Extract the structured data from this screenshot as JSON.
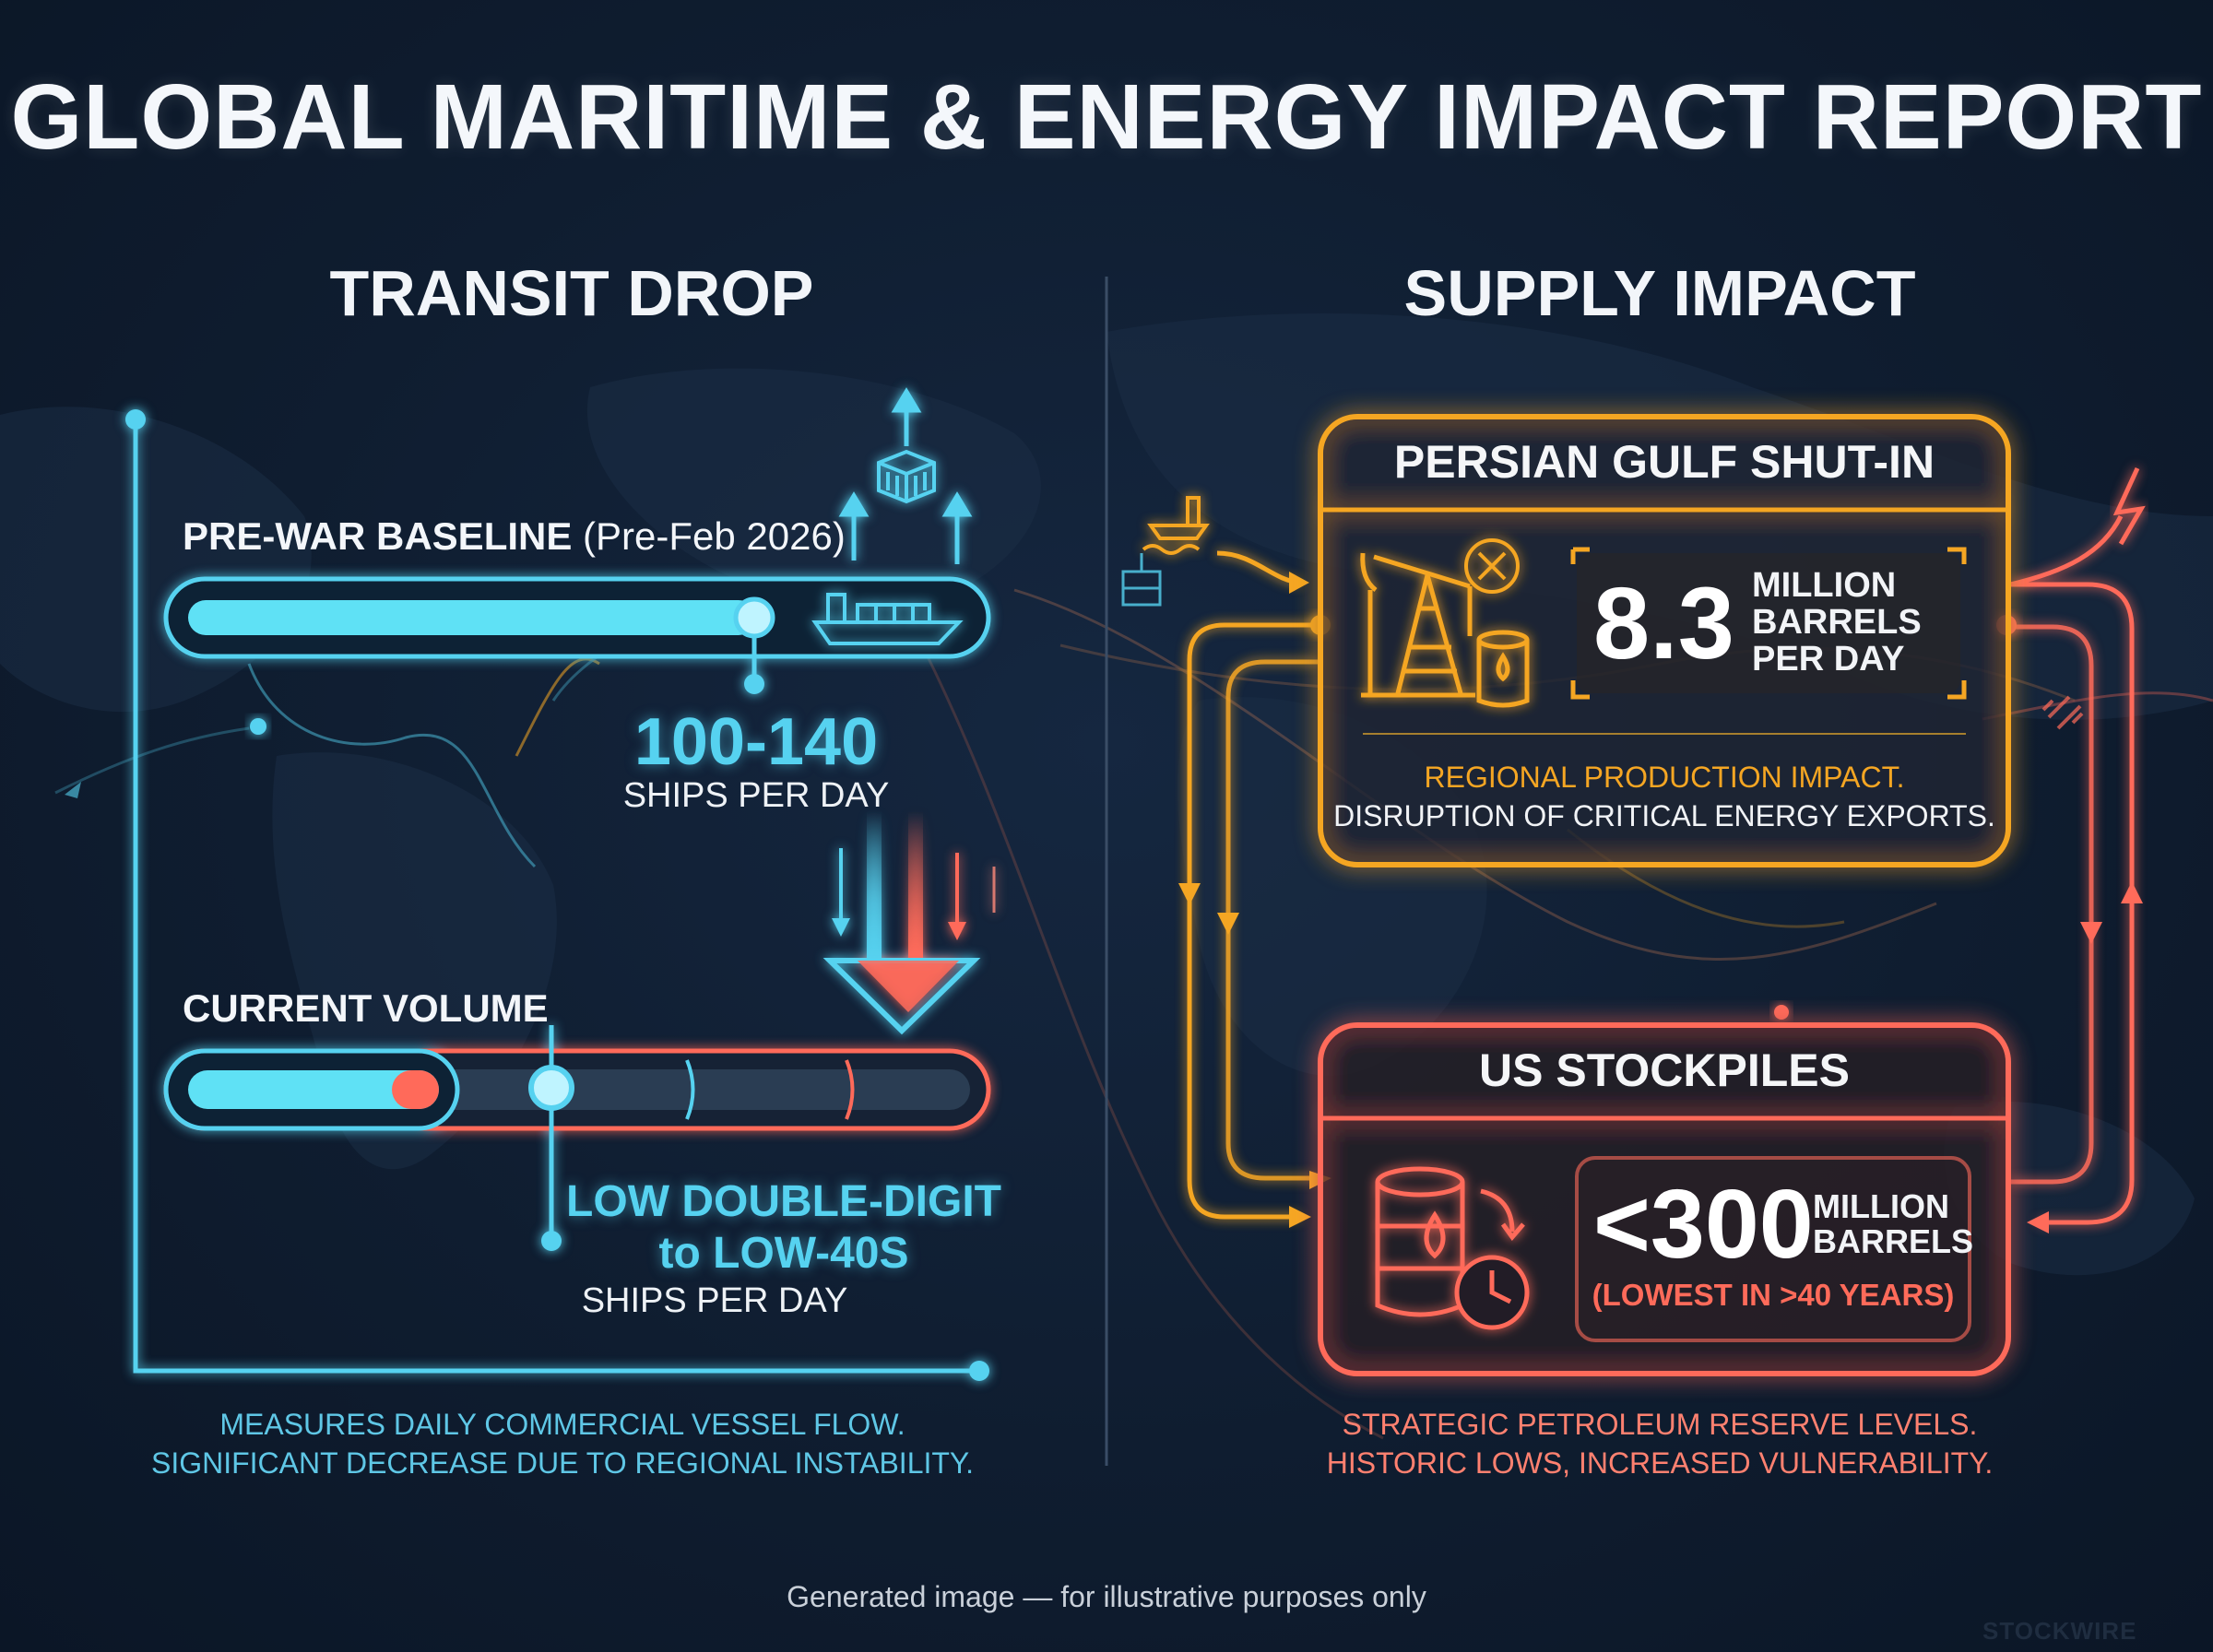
{
  "title": "GLOBAL MARITIME & ENERGY IMPACT REPORT",
  "transit": {
    "heading": "TRANSIT DROP",
    "baseline_label": "PRE-WAR BASELINE",
    "baseline_period": "(Pre-Feb 2026)",
    "baseline_value": "100-140",
    "baseline_unit": "SHIPS PER DAY",
    "current_label": "CURRENT VOLUME",
    "current_value_line1": "LOW DOUBLE-DIGIT",
    "current_value_line2": "to LOW-40S",
    "current_unit": "SHIPS PER DAY",
    "caption_line1": "MEASURES DAILY COMMERCIAL VESSEL FLOW.",
    "caption_line2": "SIGNIFICANT DECREASE DUE TO REGIONAL INSTABILITY."
  },
  "supply": {
    "heading": "SUPPLY IMPACT",
    "gulf": {
      "title": "PERSIAN GULF SHUT-IN",
      "value": "8.3",
      "unit_line1": "MILLION",
      "unit_line2": "BARRELS",
      "unit_line3": "PER DAY",
      "desc_line1": "REGIONAL PRODUCTION IMPACT.",
      "desc_line2": "DISRUPTION OF CRITICAL ENERGY EXPORTS."
    },
    "us": {
      "title": "US STOCKPILES",
      "value": "<300",
      "unit_line1": "MILLION",
      "unit_line2": "BARRELS",
      "note": "(LOWEST IN >40 YEARS)"
    },
    "caption_line1": "STRATEGIC PETROLEUM RESERVE LEVELS.",
    "caption_line2": "HISTORIC LOWS, INCREASED VULNERABILITY."
  },
  "footer": "Generated image — for illustrative purposes only",
  "brand": "STOCKWIRE",
  "colors": {
    "background": "#0f1d30",
    "cyan": "#56d2f0",
    "red": "#ff6b5a",
    "orange": "#f5a623"
  },
  "icons": [
    "cargo-ship-icon",
    "container-icon",
    "oil-pump-icon",
    "oil-barrel-icon",
    "cancel-icon",
    "barrel-clock-icon",
    "lightning-icon",
    "broken-link-icon",
    "ship-icon"
  ]
}
